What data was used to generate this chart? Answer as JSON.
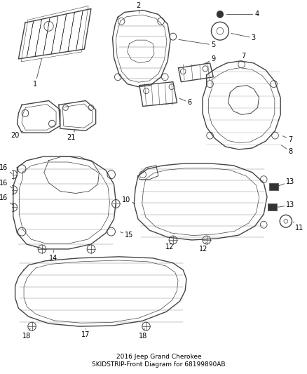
{
  "title": "2016 Jeep Grand Cherokee\nSKIDSTRIP-Front Diagram for 68199890AB",
  "background_color": "#ffffff",
  "line_color": "#444444",
  "text_color": "#000000",
  "title_fontsize": 6.5,
  "label_fontsize": 7,
  "fig_w": 4.38,
  "fig_h": 5.33,
  "dpi": 100
}
